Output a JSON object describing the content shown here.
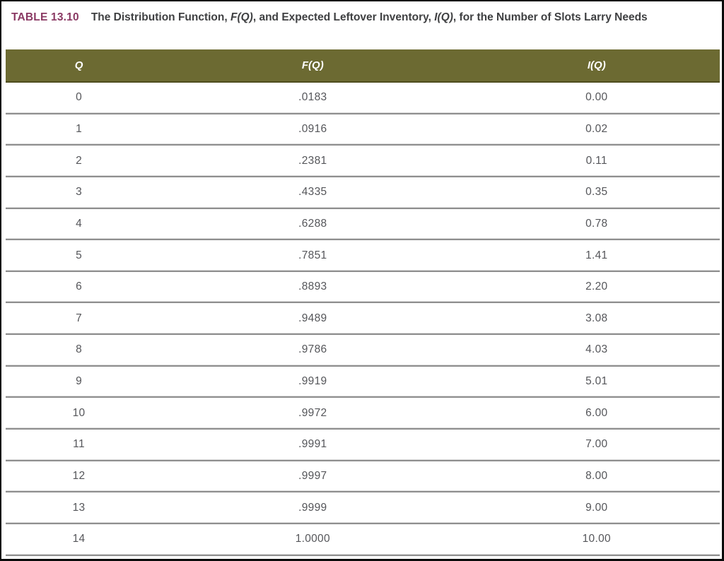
{
  "caption": {
    "label": "TABLE 13.10",
    "title_parts": {
      "p0": "The Distribution Function, ",
      "p1": "F(Q)",
      "p2": ", and Expected Leftover Inventory, ",
      "p3": "I(Q)",
      "p4": ", for the Number of Slots Larry Needs"
    }
  },
  "colors": {
    "caption_label_maroon": "#8a3963",
    "caption_text_gray": "#3f4042",
    "header_olive": "#6c6a32",
    "header_text": "#ffffff",
    "cell_text_gray": "#55565a",
    "row_rule_gray": "#8f8f8f",
    "frame_black": "#0a0a0a"
  },
  "table": {
    "columns": [
      "Q",
      "F(Q)",
      "I(Q)"
    ],
    "rows": [
      {
        "q": "0",
        "f": ".0183",
        "i": "0.00"
      },
      {
        "q": "1",
        "f": ".0916",
        "i": "0.02"
      },
      {
        "q": "2",
        "f": ".2381",
        "i": "0.11"
      },
      {
        "q": "3",
        "f": ".4335",
        "i": "0.35"
      },
      {
        "q": "4",
        "f": ".6288",
        "i": "0.78"
      },
      {
        "q": "5",
        "f": ".7851",
        "i": "1.41"
      },
      {
        "q": "6",
        "f": ".8893",
        "i": "2.20"
      },
      {
        "q": "7",
        "f": ".9489",
        "i": "3.08"
      },
      {
        "q": "8",
        "f": ".9786",
        "i": "4.03"
      },
      {
        "q": "9",
        "f": ".9919",
        "i": "5.01"
      },
      {
        "q": "10",
        "f": ".9972",
        "i": "6.00"
      },
      {
        "q": "11",
        "f": ".9991",
        "i": "7.00"
      },
      {
        "q": "12",
        "f": ".9997",
        "i": "8.00"
      },
      {
        "q": "13",
        "f": ".9999",
        "i": "9.00"
      },
      {
        "q": "14",
        "f": "1.0000",
        "i": "10.00"
      }
    ]
  },
  "chart_data": {
    "type": "table",
    "title": "The Distribution Function, F(Q), and Expected Leftover Inventory, I(Q), for the Number of Slots Larry Needs",
    "columns": [
      "Q",
      "F(Q)",
      "I(Q)"
    ],
    "Q": [
      0,
      1,
      2,
      3,
      4,
      5,
      6,
      7,
      8,
      9,
      10,
      11,
      12,
      13,
      14
    ],
    "F_Q": [
      0.0183,
      0.0916,
      0.2381,
      0.4335,
      0.6288,
      0.7851,
      0.8893,
      0.9489,
      0.9786,
      0.9919,
      0.9972,
      0.9991,
      0.9997,
      0.9999,
      1.0
    ],
    "I_Q": [
      0.0,
      0.02,
      0.11,
      0.35,
      0.78,
      1.41,
      2.2,
      3.08,
      4.03,
      5.01,
      6.0,
      7.0,
      8.0,
      9.0,
      10.0
    ]
  }
}
